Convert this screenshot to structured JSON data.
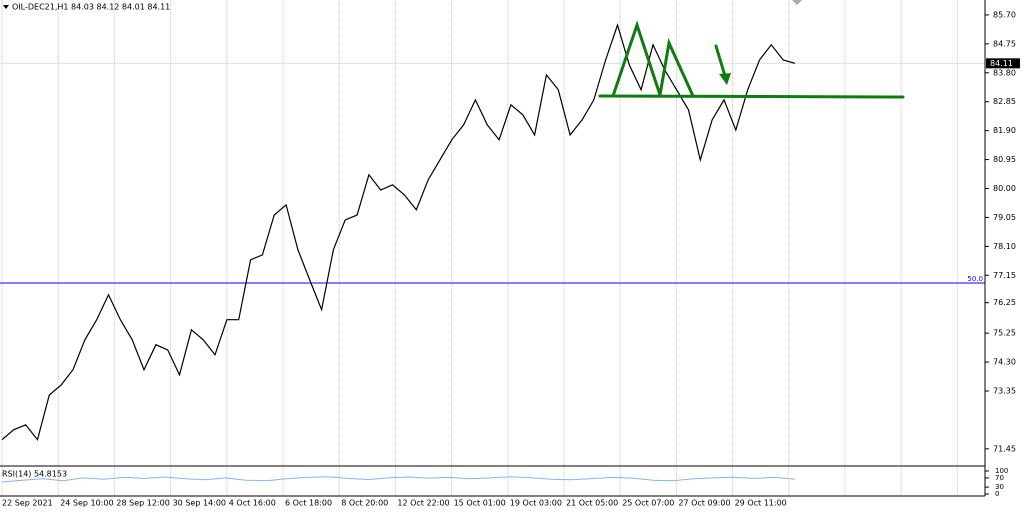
{
  "chart_data": {
    "type": "line",
    "title": "OIL-DEC21,H1  84.03 84.12 84.01 84.11",
    "color": "#000000",
    "values": [
      71.75,
      72.08,
      72.24,
      71.75,
      73.22,
      73.55,
      74.05,
      75.03,
      75.69,
      76.51,
      75.69,
      75.03,
      74.05,
      74.87,
      74.7,
      73.88,
      75.36,
      75.03,
      74.54,
      75.69,
      75.69,
      77.66,
      77.82,
      79.13,
      79.46,
      77.99,
      77.0,
      76.02,
      77.99,
      78.97,
      79.13,
      80.45,
      79.95,
      80.12,
      79.79,
      79.3,
      80.28,
      80.94,
      81.6,
      82.09,
      82.91,
      82.09,
      81.6,
      82.75,
      82.42,
      81.76,
      83.73,
      83.24,
      81.76,
      82.25,
      82.91,
      84.22,
      85.37,
      84.06,
      83.24,
      84.72,
      83.89,
      83.24,
      82.58,
      80.94,
      82.25,
      82.91,
      81.92,
      83.24,
      84.22,
      84.72,
      84.22,
      84.11
    ],
    "ylim": [
      70.92,
      86.19
    ],
    "yticks": [
      {
        "value": 85.7,
        "label": "85.70"
      },
      84.75,
      {
        "value": 83.8,
        "label": "83.80"
      },
      82.85,
      {
        "value": 81.9,
        "label": "81.90"
      },
      80.95,
      {
        "value": 80,
        "label": "80.00"
      },
      79.05,
      {
        "value": 78.1,
        "label": "78.10"
      },
      77.15,
      76.25,
      75.25,
      {
        "value": 74.3,
        "label": "74.30"
      },
      73.35,
      71.45
    ],
    "x_labels": [
      "22 Sep 2021",
      "24 Sep 10:00",
      "28 Sep 12:00",
      "30 Sep 14:00",
      "4 Oct 16:00",
      "6 Oct 18:00",
      "8 Oct 20:00",
      "12 Oct 22:00",
      "15 Oct 01:00",
      "19 Oct 03:00",
      "21 Oct 05:00",
      "25 Oct 07:00",
      "27 Oct 09:00",
      "29 Oct 11:00"
    ],
    "last_price": 84.11,
    "level_label": "50.0",
    "grid": true,
    "rsi": {
      "label": "RSI(14) 54.8153",
      "color": "#87b6e8",
      "values": [
        52,
        60,
        66,
        58,
        70,
        64,
        72,
        68,
        74,
        66,
        62,
        70,
        60,
        58,
        66,
        72,
        75,
        68,
        63,
        70,
        74,
        69,
        72,
        66,
        70,
        75,
        71,
        64,
        62,
        67,
        72,
        69,
        60,
        58,
        66,
        70,
        73,
        68,
        72,
        65
      ],
      "ylim": [
        0,
        100
      ],
      "yticks": [
        100,
        70,
        30,
        0
      ]
    }
  }
}
